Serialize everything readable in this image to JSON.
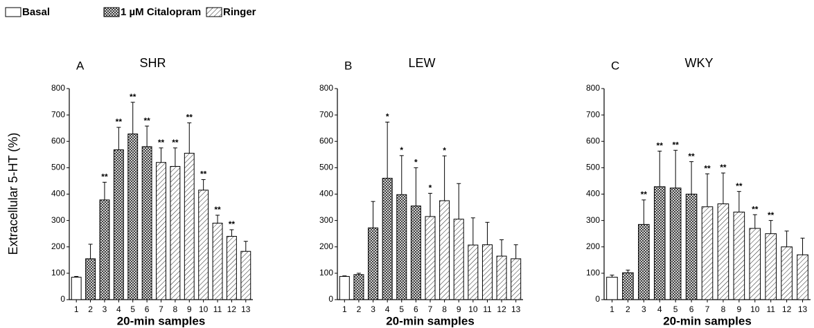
{
  "chart_data": [
    {
      "type": "bar",
      "panel_label": "A",
      "title": "SHR",
      "xlabel": "20-min samples",
      "ylabel": "Extracellular 5-HT (%)",
      "categories": [
        "1",
        "2",
        "3",
        "4",
        "5",
        "6",
        "7",
        "8",
        "9",
        "10",
        "11",
        "12",
        "13"
      ],
      "ylim": [
        0,
        800
      ],
      "yticks": [
        0,
        100,
        200,
        300,
        400,
        500,
        600,
        700,
        800
      ],
      "series": [
        {
          "name": "Basal",
          "color": "#ffffff",
          "pattern": "none",
          "values": [
            85,
            null,
            null,
            null,
            null,
            null,
            null,
            null,
            null,
            null,
            null,
            null,
            null
          ],
          "errors": [
            3,
            null,
            null,
            null,
            null,
            null,
            null,
            null,
            null,
            null,
            null,
            null,
            null
          ]
        },
        {
          "name": "1 µM Citalopram",
          "color": "#ffffff",
          "pattern": "crosshatch",
          "values": [
            null,
            155,
            378,
            568,
            628,
            580,
            null,
            null,
            null,
            null,
            null,
            null,
            null
          ],
          "errors": [
            null,
            55,
            67,
            85,
            120,
            78,
            null,
            null,
            null,
            null,
            null,
            null,
            null
          ]
        },
        {
          "name": "Ringer",
          "color": "#ffffff",
          "pattern": "diagonal",
          "values": [
            null,
            null,
            null,
            null,
            null,
            null,
            520,
            505,
            555,
            415,
            290,
            240,
            183
          ],
          "errors": [
            null,
            null,
            null,
            null,
            null,
            null,
            55,
            70,
            115,
            40,
            30,
            25,
            38
          ]
        }
      ],
      "significance": [
        null,
        null,
        "**",
        "**",
        "**",
        "**",
        "**",
        "**",
        "**",
        "**",
        "**",
        "**",
        null
      ]
    },
    {
      "type": "bar",
      "panel_label": "B",
      "title": "LEW",
      "xlabel": "20-min samples",
      "categories": [
        "1",
        "2",
        "3",
        "4",
        "5",
        "6",
        "7",
        "8",
        "9",
        "10",
        "11",
        "12",
        "13"
      ],
      "ylim": [
        0,
        800
      ],
      "yticks": [
        0,
        100,
        200,
        300,
        400,
        500,
        600,
        700,
        800
      ],
      "series": [
        {
          "name": "Basal",
          "color": "#ffffff",
          "pattern": "none",
          "values": [
            88,
            null,
            null,
            null,
            null,
            null,
            null,
            null,
            null,
            null,
            null,
            null,
            null
          ],
          "errors": [
            2,
            null,
            null,
            null,
            null,
            null,
            null,
            null,
            null,
            null,
            null,
            null,
            null
          ]
        },
        {
          "name": "1 µM Citalopram",
          "color": "#ffffff",
          "pattern": "crosshatch",
          "values": [
            null,
            95,
            272,
            460,
            398,
            355,
            null,
            null,
            null,
            null,
            null,
            null,
            null
          ],
          "errors": [
            null,
            5,
            100,
            213,
            148,
            145,
            null,
            null,
            null,
            null,
            null,
            null,
            null
          ]
        },
        {
          "name": "Ringer",
          "color": "#ffffff",
          "pattern": "diagonal",
          "values": [
            null,
            null,
            null,
            null,
            null,
            null,
            315,
            375,
            305,
            207,
            208,
            165,
            155
          ],
          "errors": [
            null,
            null,
            null,
            null,
            null,
            null,
            88,
            170,
            135,
            103,
            85,
            62,
            53
          ]
        }
      ],
      "significance": [
        null,
        null,
        null,
        "*",
        "*",
        "*",
        "*",
        "*",
        null,
        null,
        null,
        null,
        null
      ]
    },
    {
      "type": "bar",
      "panel_label": "C",
      "title": "WKY",
      "xlabel": "20-min samples",
      "categories": [
        "1",
        "2",
        "3",
        "4",
        "5",
        "6",
        "7",
        "8",
        "9",
        "10",
        "11",
        "12",
        "13"
      ],
      "ylim": [
        0,
        800
      ],
      "yticks": [
        0,
        100,
        200,
        300,
        400,
        500,
        600,
        700,
        800
      ],
      "series": [
        {
          "name": "Basal",
          "color": "#ffffff",
          "pattern": "none",
          "values": [
            85,
            null,
            null,
            null,
            null,
            null,
            null,
            null,
            null,
            null,
            null,
            null,
            null
          ],
          "errors": [
            8,
            null,
            null,
            null,
            null,
            null,
            null,
            null,
            null,
            null,
            null,
            null,
            null
          ]
        },
        {
          "name": "1 µM Citalopram",
          "color": "#ffffff",
          "pattern": "crosshatch",
          "values": [
            null,
            102,
            285,
            428,
            423,
            400,
            null,
            null,
            null,
            null,
            null,
            null,
            null
          ],
          "errors": [
            null,
            10,
            93,
            135,
            143,
            123,
            null,
            null,
            null,
            null,
            null,
            null,
            null
          ]
        },
        {
          "name": "Ringer",
          "color": "#ffffff",
          "pattern": "diagonal",
          "values": [
            null,
            null,
            null,
            null,
            null,
            null,
            352,
            363,
            332,
            270,
            250,
            200,
            170
          ],
          "errors": [
            null,
            null,
            null,
            null,
            null,
            null,
            125,
            117,
            78,
            52,
            50,
            60,
            63
          ]
        }
      ],
      "significance": [
        null,
        null,
        "**",
        "**",
        "**",
        "**",
        "**",
        "**",
        "**",
        "**",
        "**",
        null,
        null
      ]
    }
  ]
}
